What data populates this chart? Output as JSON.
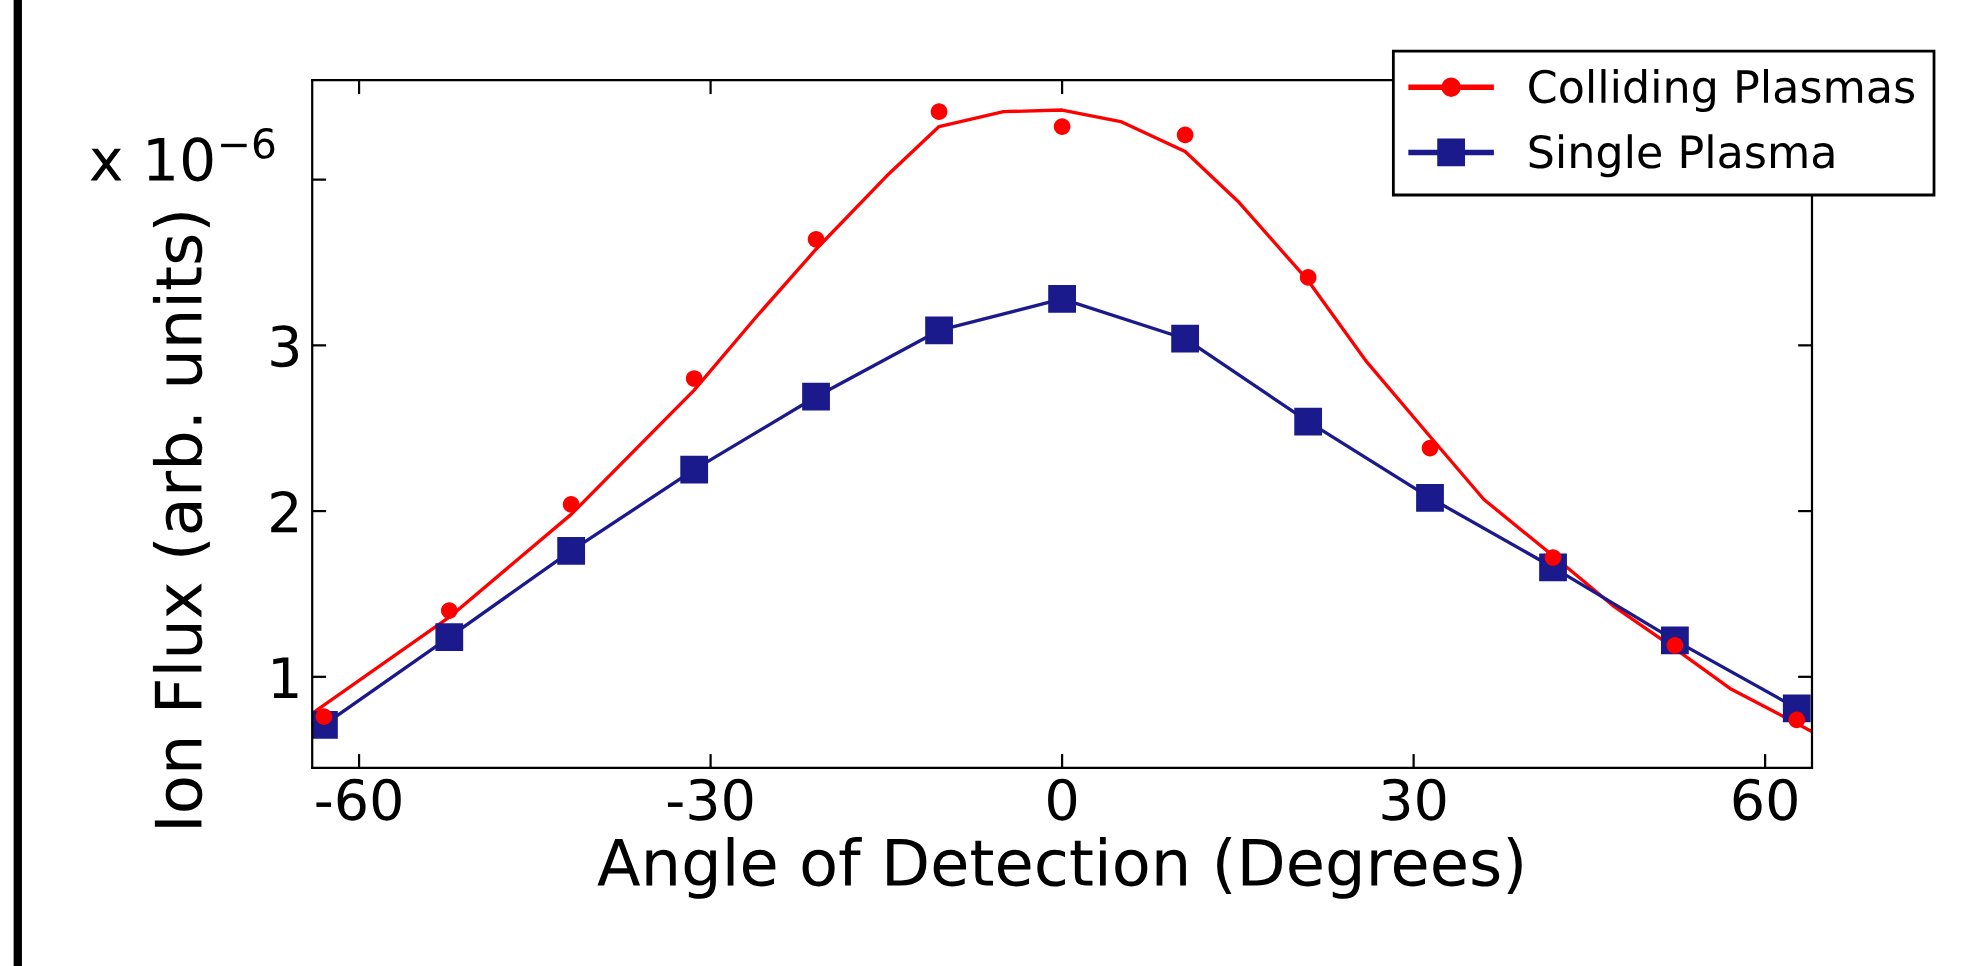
{
  "chart_data": {
    "type": "scatter",
    "xlabel": "Angle of Detection (Degrees)",
    "ylabel": "Ion Flux (arb. units)",
    "annotations": [
      "x 10$^{−6}$"
    ],
    "xlim": [
      -64,
      64
    ],
    "xticks": [
      -60,
      -30,
      0,
      30,
      60
    ],
    "ylim": [
      0.45,
      4.6
    ],
    "yticks": [
      1,
      2,
      3,
      {
        "value": 4,
        "label": null
      }
    ],
    "grid": false,
    "legend": "top right",
    "series": [
      {
        "name": "Colliding Plasmas",
        "color": "#ff0000",
        "marker": "circle",
        "x": [
          -63,
          -52.3,
          -41.9,
          -31.4,
          -21,
          -10.5,
          0,
          10.5,
          21,
          31.4,
          41.9,
          52.3,
          62.7
        ],
        "values": [
          0.76,
          1.4,
          2.04,
          2.8,
          3.64,
          4.41,
          4.32,
          4.27,
          3.41,
          2.38,
          1.72,
          1.19,
          0.74
        ]
      },
      {
        "type": "line",
        "color": "#ff0000",
        "marker": "none",
        "line_style": "solid",
        "x": [
          -64,
          -52.3,
          -41.9,
          -31.4,
          -26,
          -21,
          -15,
          -10.5,
          -5,
          0,
          5,
          10.5,
          15,
          21,
          26,
          31.4,
          36,
          41.9,
          47,
          52.3,
          57,
          64
        ],
        "values": [
          0.78,
          1.36,
          1.98,
          2.73,
          3.18,
          3.58,
          4.02,
          4.32,
          4.41,
          4.42,
          4.35,
          4.17,
          3.87,
          3.39,
          2.9,
          2.45,
          2.07,
          1.73,
          1.43,
          1.17,
          0.93,
          0.67
        ]
      },
      {
        "name": "Single Plasma",
        "type": "line",
        "color": "#1a1a8c",
        "marker": "square",
        "line_style": "solid",
        "x": [
          -63,
          -52.3,
          -41.9,
          -31.4,
          -21,
          -10.5,
          0,
          10.5,
          21,
          31.4,
          41.9,
          52.3,
          62.7
        ],
        "values": [
          0.71,
          1.24,
          1.76,
          2.25,
          2.69,
          3.09,
          3.28,
          3.04,
          2.54,
          2.08,
          1.66,
          1.22,
          0.81
        ]
      }
    ]
  }
}
